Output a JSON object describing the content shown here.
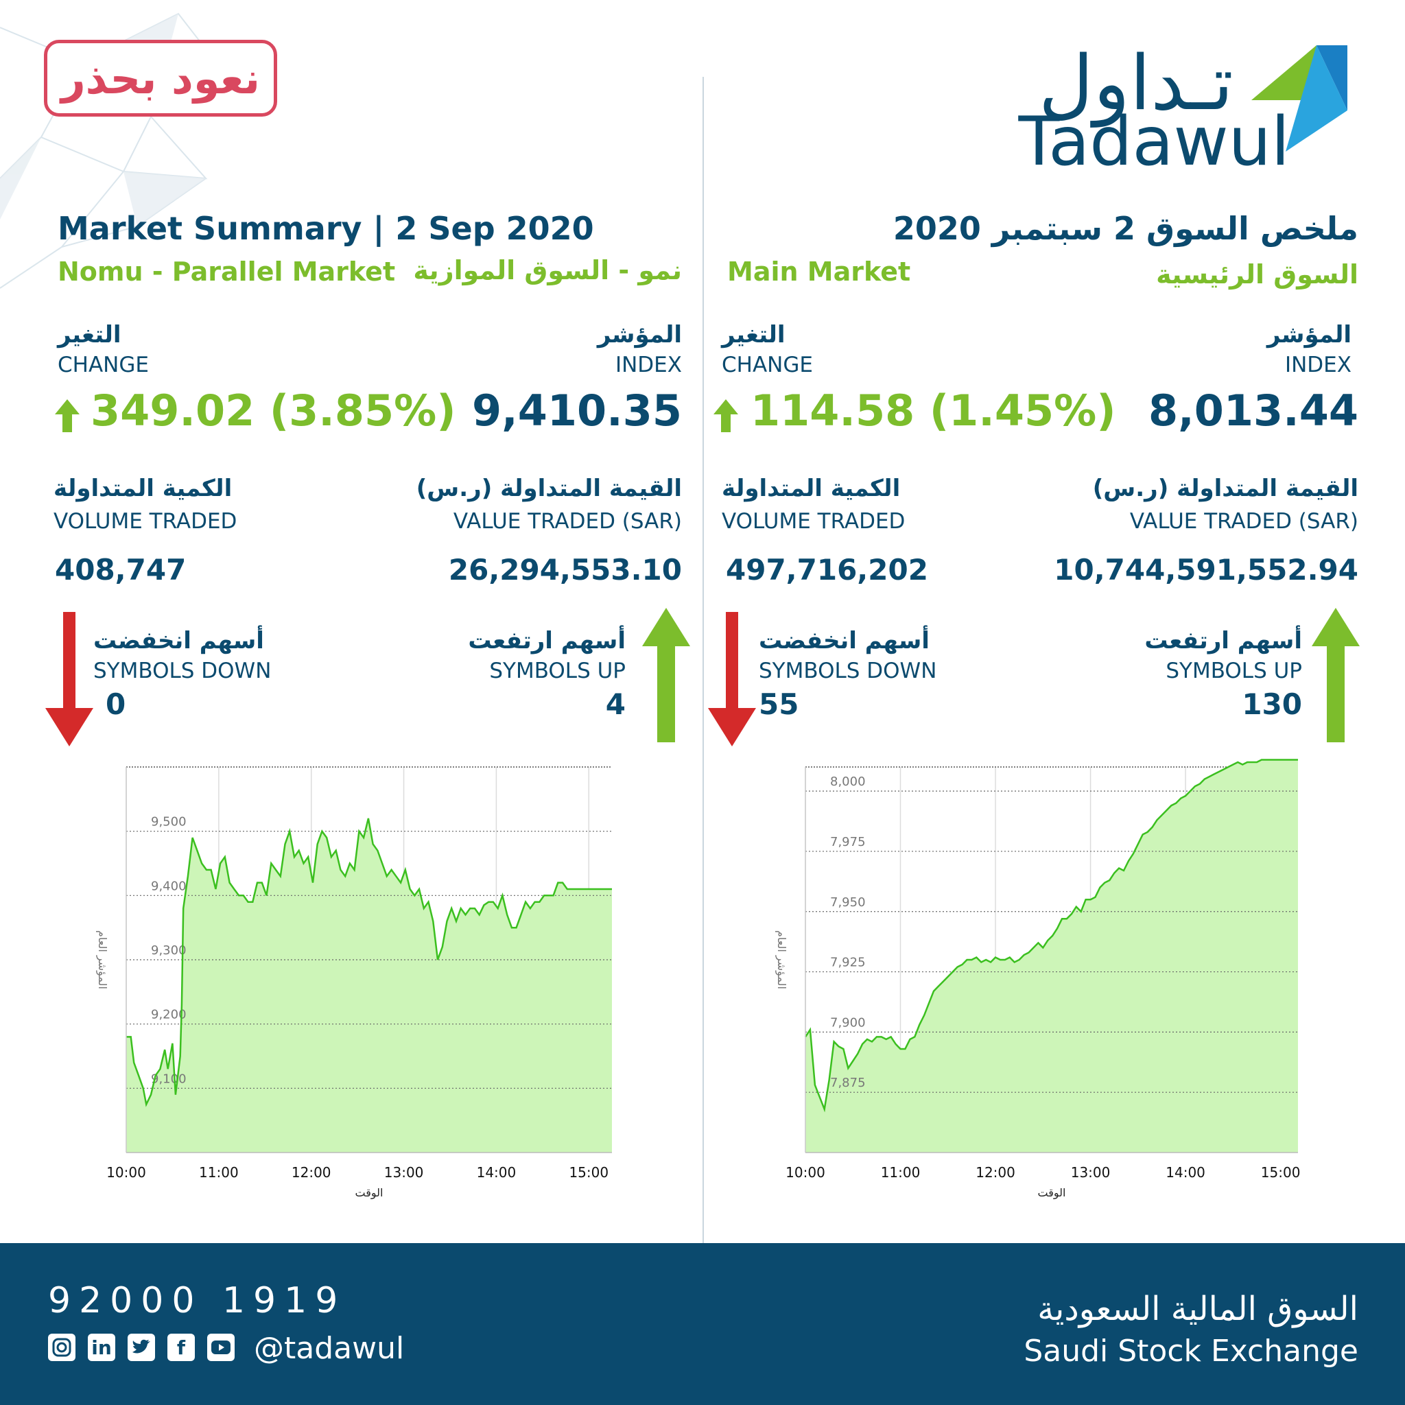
{
  "badge": {
    "text": "نعود بحذر"
  },
  "logo": {
    "arabic": "تـداول",
    "english": "Tadawul"
  },
  "nomu": {
    "title": "Market Summary | 2 Sep 2020",
    "subtitle_en": "Nomu - Parallel Market",
    "subtitle_ar": "نمو - السوق الموازية",
    "change_ar": "التغير",
    "change_en": "CHANGE",
    "change_value": "349.02 (3.85%)",
    "index_ar": "المؤشر",
    "index_en": "INDEX",
    "index_value": "9,410.35",
    "volume_ar": "الكمية المتداولة",
    "volume_en": "VOLUME TRADED",
    "volume_value": "408,747",
    "value_ar": "القيمة المتداولة (ر.س)",
    "value_en": "VALUE TRADED (SAR)",
    "value_value": "26,294,553.10",
    "down_ar": "أسهم انخفضت",
    "down_en": "SYMBOLS DOWN",
    "down_value": "0",
    "up_ar": "أسهم ارتفعت",
    "up_en": "SYMBOLS UP",
    "up_value": "4"
  },
  "main": {
    "title": "ملخص السوق 2 سبتمبر 2020",
    "subtitle_en": "Main Market",
    "subtitle_ar": "السوق الرئيسية",
    "change_ar": "التغير",
    "change_en": "CHANGE",
    "change_value": "114.58 (1.45%)",
    "index_ar": "المؤشر",
    "index_en": "INDEX",
    "index_value": "8,013.44",
    "volume_ar": "الكمية المتداولة",
    "volume_en": "VOLUME TRADED",
    "volume_value": "497,716,202",
    "value_ar": "القيمة المتداولة (ر.س)",
    "value_en": "VALUE TRADED (SAR)",
    "value_value": "10,744,591,552.94",
    "down_ar": "أسهم انخفضت",
    "down_en": "SYMBOLS DOWN",
    "down_value": "55",
    "up_ar": "أسهم ارتفعت",
    "up_en": "SYMBOLS UP",
    "up_value": "130"
  },
  "footer": {
    "phone": "92000 1919",
    "handle": "@tadawul",
    "exchange_ar": "السوق المالية السعودية",
    "exchange_en": "Saudi Stock Exchange",
    "social_icons": [
      "instagram-icon",
      "linkedin-icon",
      "twitter-icon",
      "facebook-icon",
      "youtube-icon"
    ]
  },
  "colors": {
    "navy": "#0b4a6e",
    "green": "#7cbd2c",
    "red": "#d42a2a",
    "fill": "#cdf5b8",
    "line": "#3bbf1f"
  },
  "chart_data": [
    {
      "type": "area",
      "ylabel": "المؤشر العام",
      "xlabel": "الوقت",
      "x_ticks": [
        "10:00",
        "11:00",
        "12:00",
        "13:00",
        "14:00",
        "15:00"
      ],
      "y_ticks": [
        9100,
        9200,
        9300,
        9400,
        9500
      ],
      "y_tick_labels": [
        "9,100",
        "9,200",
        "9,300",
        "9,400",
        "9,500"
      ],
      "ylim": [
        9000,
        9600
      ],
      "xlim": [
        600,
        915
      ],
      "grid": true,
      "x": [
        600,
        603,
        605,
        608,
        611,
        613,
        616,
        619,
        622,
        625,
        627,
        630,
        632,
        635,
        636,
        637,
        640,
        643,
        646,
        649,
        652,
        655,
        658,
        661,
        664,
        667,
        670,
        673,
        676,
        679,
        682,
        685,
        688,
        691,
        694,
        697,
        700,
        703,
        706,
        709,
        712,
        715,
        718,
        721,
        724,
        727,
        730,
        733,
        736,
        739,
        742,
        745,
        748,
        751,
        754,
        757,
        760,
        763,
        766,
        769,
        772,
        775,
        778,
        781,
        784,
        787,
        790,
        793,
        796,
        799,
        802,
        805,
        808,
        811,
        814,
        817,
        820,
        823,
        826,
        829,
        832,
        835,
        838,
        841,
        844,
        847,
        850,
        853,
        856,
        859,
        862,
        865,
        868,
        871,
        874,
        877,
        880,
        883,
        886,
        889,
        892,
        895,
        898,
        901,
        904,
        907,
        910,
        915
      ],
      "y": [
        9180,
        9180,
        9140,
        9120,
        9100,
        9075,
        9090,
        9120,
        9130,
        9160,
        9130,
        9170,
        9090,
        9150,
        9230,
        9380,
        9430,
        9490,
        9470,
        9450,
        9440,
        9440,
        9410,
        9450,
        9460,
        9420,
        9410,
        9400,
        9400,
        9390,
        9390,
        9420,
        9420,
        9400,
        9450,
        9440,
        9430,
        9480,
        9500,
        9460,
        9470,
        9450,
        9460,
        9420,
        9480,
        9500,
        9490,
        9460,
        9470,
        9440,
        9430,
        9450,
        9440,
        9500,
        9490,
        9520,
        9480,
        9470,
        9450,
        9430,
        9440,
        9430,
        9420,
        9440,
        9410,
        9400,
        9410,
        9380,
        9390,
        9360,
        9300,
        9320,
        9360,
        9380,
        9360,
        9380,
        9370,
        9380,
        9380,
        9370,
        9385,
        9390,
        9390,
        9380,
        9400,
        9370,
        9350,
        9350,
        9370,
        9390,
        9380,
        9390,
        9390,
        9400,
        9400,
        9400,
        9420,
        9420,
        9410,
        9410,
        9410,
        9410,
        9410,
        9410,
        9410,
        9410,
        9410,
        9410
      ]
    },
    {
      "type": "area",
      "ylabel": "المؤشر العام",
      "xlabel": "الوقت",
      "x_ticks": [
        "10:00",
        "11:00",
        "12:00",
        "13:00",
        "14:00",
        "15:00"
      ],
      "y_ticks": [
        7875,
        7900,
        7925,
        7950,
        7975,
        8000
      ],
      "y_tick_labels": [
        "7,875",
        "7,900",
        "7,925",
        "7,950",
        "7,975",
        "8,000"
      ],
      "ylim": [
        7850,
        8010
      ],
      "xlim": [
        600,
        911
      ],
      "grid": true,
      "x": [
        600,
        603,
        606,
        609,
        612,
        615,
        618,
        621,
        624,
        627,
        630,
        633,
        636,
        639,
        642,
        645,
        648,
        651,
        654,
        657,
        660,
        663,
        666,
        669,
        672,
        675,
        678,
        681,
        684,
        687,
        690,
        693,
        696,
        699,
        702,
        705,
        708,
        711,
        714,
        717,
        720,
        723,
        726,
        729,
        732,
        735,
        738,
        741,
        744,
        747,
        750,
        753,
        756,
        759,
        762,
        765,
        768,
        771,
        774,
        777,
        780,
        783,
        786,
        789,
        792,
        795,
        798,
        801,
        804,
        807,
        810,
        813,
        816,
        819,
        822,
        825,
        828,
        831,
        834,
        837,
        840,
        843,
        846,
        849,
        852,
        855,
        858,
        861,
        864,
        867,
        870,
        873,
        876,
        879,
        882,
        885,
        888,
        891,
        894,
        897,
        900,
        903,
        906,
        911
      ],
      "y": [
        7898,
        7901,
        7878,
        7873,
        7868,
        7880,
        7896,
        7894,
        7893,
        7885,
        7888,
        7891,
        7895,
        7897,
        7896,
        7898,
        7898,
        7897,
        7898,
        7895,
        7893,
        7893,
        7897,
        7898,
        7903,
        7907,
        7912,
        7917,
        7919,
        7921,
        7923,
        7925,
        7927,
        7928,
        7930,
        7930,
        7931,
        7929,
        7930,
        7929,
        7931,
        7930,
        7930,
        7931,
        7929,
        7930,
        7932,
        7933,
        7935,
        7937,
        7935,
        7938,
        7940,
        7943,
        7947,
        7947,
        7949,
        7952,
        7950,
        7955,
        7955,
        7956,
        7960,
        7962,
        7963,
        7966,
        7968,
        7967,
        7971,
        7974,
        7978,
        7982,
        7983,
        7985,
        7988,
        7990,
        7992,
        7994,
        7995,
        7997,
        7998,
        8000,
        8002,
        8003,
        8005,
        8006,
        8007,
        8008,
        8009,
        8010,
        8011,
        8012,
        8011,
        8012,
        8012,
        8012,
        8013,
        8013,
        8013,
        8013,
        8013,
        8013,
        8013,
        8013
      ]
    }
  ]
}
